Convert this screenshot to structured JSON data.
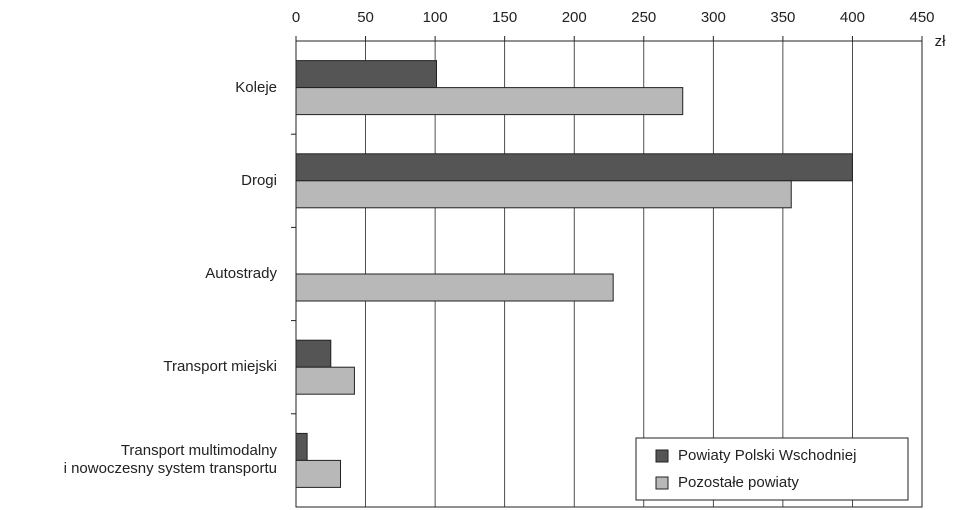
{
  "chart_data": {
    "type": "barh",
    "categories": [
      "Koleje",
      "Drogi",
      "Autostrady",
      "Transport miejski",
      "Transport multimodalny\ni nowoczesny system transportu"
    ],
    "series": [
      {
        "name": "Powiaty Polski Wschodniej",
        "color": "#555555",
        "values": [
          101,
          400,
          0,
          25,
          8
        ]
      },
      {
        "name": "Pozostałe powiaty",
        "color": "#b8b8b8",
        "values": [
          278,
          356,
          228,
          42,
          32
        ]
      }
    ],
    "xlim": [
      0,
      450
    ],
    "xticks": [
      0,
      50,
      100,
      150,
      200,
      250,
      300,
      350,
      400,
      450
    ],
    "x_unit": "zł",
    "grid": true,
    "legend": "lower right"
  }
}
